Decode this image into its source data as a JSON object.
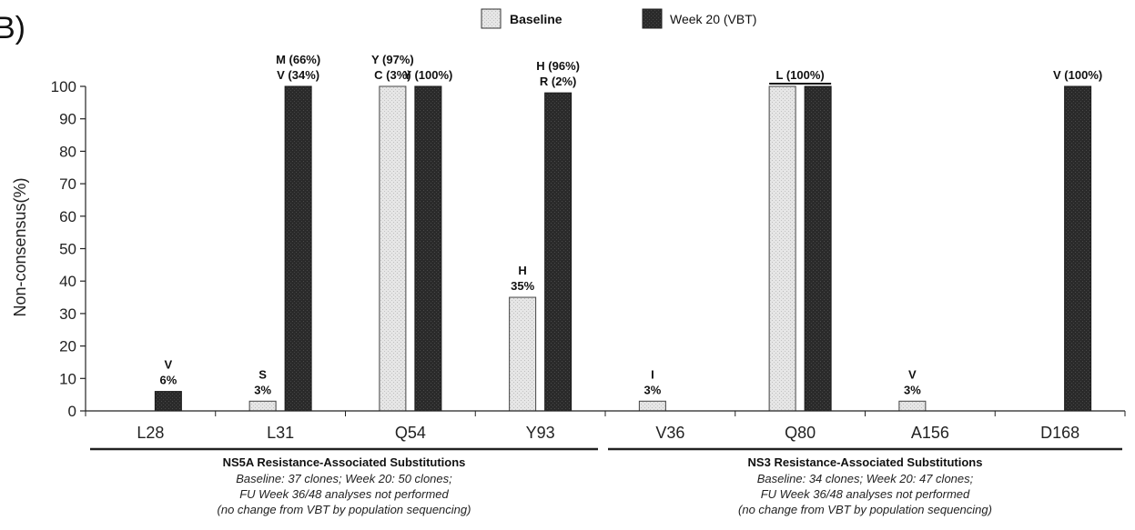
{
  "panel_label": "B)",
  "legend": [
    {
      "label": "Baseline",
      "bold": true,
      "swatch": "light"
    },
    {
      "label": "Week 20 (VBT)",
      "bold": false,
      "swatch": "dark"
    }
  ],
  "colors": {
    "baseline_fill": "#e2e2e2",
    "week20_fill": "#2a2a2a",
    "axis": "#222222"
  },
  "chart_data": {
    "type": "bar",
    "ylabel": "Non-consensus(%)",
    "ylim": [
      0,
      100
    ],
    "yticks": [
      0,
      10,
      20,
      30,
      40,
      50,
      60,
      70,
      80,
      90,
      100
    ],
    "categories": [
      "L28",
      "L31",
      "Q54",
      "Y93",
      "V36",
      "Q80",
      "A156",
      "D168"
    ],
    "series": [
      {
        "name": "Baseline",
        "values": [
          0,
          3,
          100,
          35,
          3,
          100,
          3,
          0
        ]
      },
      {
        "name": "Week 20 (VBT)",
        "values": [
          6,
          100,
          100,
          98,
          0,
          100,
          0,
          100
        ]
      }
    ],
    "annotations": [
      {
        "category": "L28",
        "series": "Week 20 (VBT)",
        "lines": [
          "V",
          "6%"
        ]
      },
      {
        "category": "L31",
        "series": "Baseline",
        "lines": [
          "S",
          "3%"
        ]
      },
      {
        "category": "L31",
        "series": "Week 20 (VBT)",
        "lines": [
          "M (66%)",
          "V (34%)"
        ]
      },
      {
        "category": "Q54",
        "series": "Baseline",
        "lines": [
          "Y (97%)",
          "C (3%)"
        ]
      },
      {
        "category": "Q54",
        "series": "Week 20 (VBT)",
        "lines": [
          "Y (100%)"
        ]
      },
      {
        "category": "Y93",
        "series": "Baseline",
        "lines": [
          "H",
          "35%"
        ]
      },
      {
        "category": "Y93",
        "series": "Week 20 (VBT)",
        "lines": [
          "H (96%)",
          "R (2%)"
        ]
      },
      {
        "category": "V36",
        "series": "Baseline",
        "lines": [
          "I",
          "3%"
        ]
      },
      {
        "category": "Q80",
        "series": "both",
        "lines": [
          "L (100%)"
        ]
      },
      {
        "category": "A156",
        "series": "Baseline",
        "lines": [
          "V",
          "3%"
        ]
      },
      {
        "category": "D168",
        "series": "Week 20 (VBT)",
        "lines": [
          "V (100%)"
        ]
      }
    ],
    "groups": [
      {
        "title": "NS5A Resistance-Associated Substitutions",
        "categories": [
          "L28",
          "L31",
          "Q54",
          "Y93"
        ],
        "notes": [
          "Baseline: 37 clones; Week 20: 50 clones;",
          "FU Week 36/48 analyses not performed",
          "(no change from VBT by population sequencing)"
        ]
      },
      {
        "title": "NS3 Resistance-Associated Substitutions",
        "categories": [
          "V36",
          "Q80",
          "A156",
          "D168"
        ],
        "notes": [
          "Baseline: 34 clones; Week 20: 47 clones;",
          "FU Week 36/48 analyses not performed",
          "(no change from VBT by population sequencing)"
        ]
      }
    ]
  }
}
